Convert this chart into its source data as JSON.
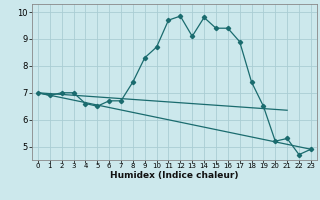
{
  "xlabel": "Humidex (Indice chaleur)",
  "bg_color": "#cce8ec",
  "plot_bg_color": "#cce8ec",
  "grid_color": "#aacdd4",
  "line_color": "#1a6b6e",
  "xlim": [
    -0.5,
    23.5
  ],
  "ylim": [
    4.5,
    10.3
  ],
  "yticks": [
    5,
    6,
    7,
    8,
    9,
    10
  ],
  "xticks": [
    0,
    1,
    2,
    3,
    4,
    5,
    6,
    7,
    8,
    9,
    10,
    11,
    12,
    13,
    14,
    15,
    16,
    17,
    18,
    19,
    20,
    21,
    22,
    23
  ],
  "lines": [
    {
      "x": [
        0,
        1,
        2,
        3,
        4,
        5,
        6,
        7,
        8,
        9,
        10,
        11,
        12,
        13,
        14,
        15,
        16,
        17,
        18,
        19,
        20,
        21,
        22,
        23
      ],
      "y": [
        7.0,
        6.9,
        7.0,
        7.0,
        6.6,
        6.5,
        6.7,
        6.7,
        7.4,
        8.3,
        8.7,
        9.7,
        9.85,
        9.1,
        9.8,
        9.4,
        9.4,
        8.9,
        7.4,
        6.5,
        5.2,
        5.3,
        4.7,
        4.9
      ],
      "marker": true
    },
    {
      "x": [
        0,
        21
      ],
      "y": [
        7.0,
        6.35
      ],
      "marker": false
    },
    {
      "x": [
        0,
        23
      ],
      "y": [
        7.0,
        4.9
      ],
      "marker": false
    }
  ]
}
